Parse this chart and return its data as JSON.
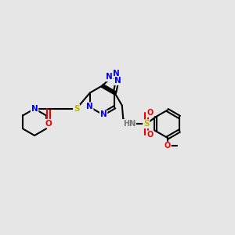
{
  "background_color": "#e6e6e6",
  "bond_color": "#000000",
  "bond_width": 1.5,
  "atom_colors": {
    "N": "#0000ee",
    "O": "#ee0000",
    "S": "#bbbb00",
    "H": "#777777",
    "C": "#000000"
  },
  "font_size": 7.5
}
